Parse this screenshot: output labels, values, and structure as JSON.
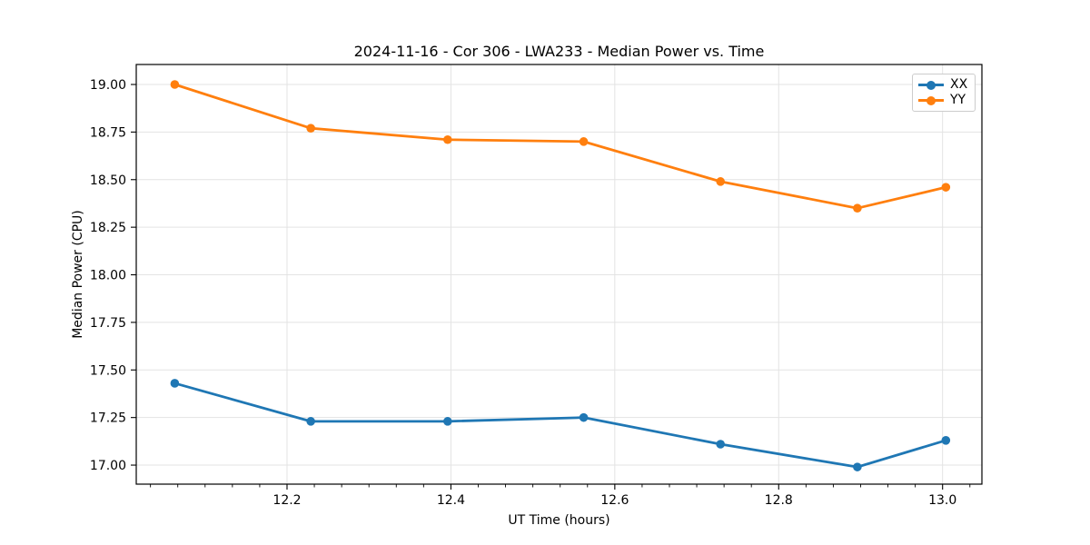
{
  "chart_data": {
    "type": "line",
    "title": "2024-11-16 - Cor 306 - LWA233 - Median Power vs. Time",
    "xlabel": "UT Time (hours)",
    "ylabel": "Median Power (CPU)",
    "x": [
      12.063,
      12.229,
      12.396,
      12.562,
      12.729,
      12.896,
      13.004
    ],
    "series": [
      {
        "name": "XX",
        "color": "#1f77b4",
        "values": [
          17.43,
          17.23,
          17.23,
          17.25,
          17.11,
          16.99,
          17.13
        ]
      },
      {
        "name": "YY",
        "color": "#ff7f0e",
        "values": [
          19.0,
          18.77,
          18.71,
          18.7,
          18.49,
          18.35,
          18.46
        ]
      }
    ],
    "xlim": [
      12.016,
      13.048
    ],
    "ylim": [
      16.9,
      19.105
    ],
    "x_ticks": [
      12.2,
      12.4,
      12.6,
      12.8,
      13.0
    ],
    "x_tick_labels": [
      "12.2",
      "12.4",
      "12.6",
      "12.8",
      "13.0"
    ],
    "y_ticks": [
      17.0,
      17.25,
      17.5,
      17.75,
      18.0,
      18.25,
      18.5,
      18.75,
      19.0
    ],
    "y_tick_labels": [
      "17.00",
      "17.25",
      "17.50",
      "17.75",
      "18.00",
      "18.25",
      "18.50",
      "18.75",
      "19.00"
    ],
    "grid": true,
    "legend_position": "upper right",
    "marker": "circle",
    "colors": {
      "grid": "#e3e3e3",
      "axis": "#000000",
      "background": "#ffffff"
    }
  }
}
